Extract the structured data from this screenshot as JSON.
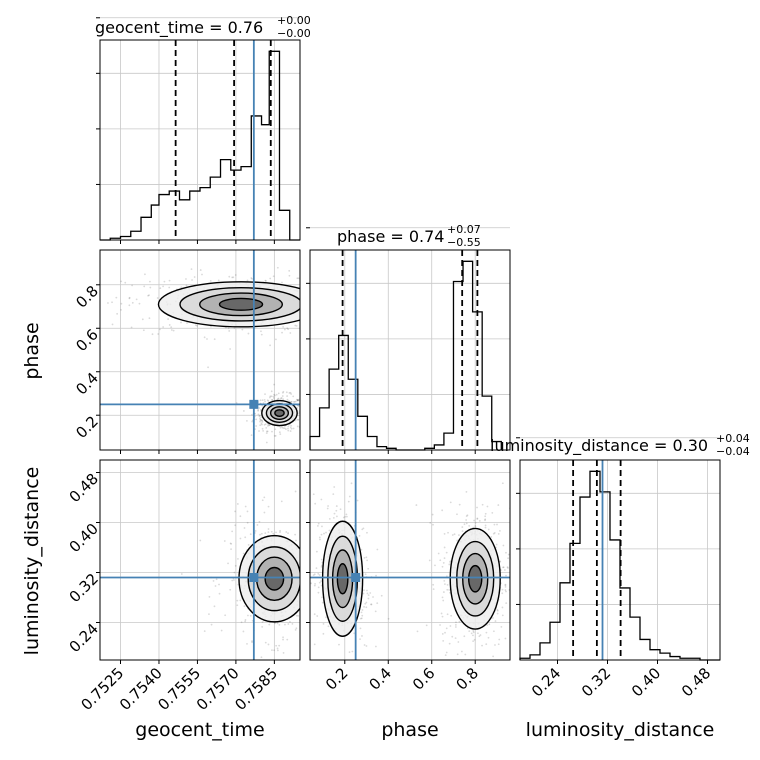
{
  "chart_data": {
    "type": "corner",
    "parameters": [
      "geocent_time",
      "phase",
      "luminosity_distance"
    ],
    "truths": [
      0.7577,
      0.25,
      0.312
    ],
    "truth_color": "#4682b4",
    "titles": [
      {
        "param": "geocent_time",
        "label": "geocent_time = 0.76",
        "plus": "+0.00",
        "minus": "−0.00"
      },
      {
        "param": "phase",
        "label": "phase = 0.74",
        "plus": "+0.07",
        "minus": "−0.55"
      },
      {
        "param": "luminosity_distance",
        "label": "luminosity_distance = 0.30",
        "plus": "+0.04",
        "minus": "−0.04"
      }
    ],
    "ranges": {
      "geocent_time": [
        0.7517,
        0.7595
      ],
      "phase": [
        0.04,
        0.96
      ],
      "luminosity_distance": [
        0.18,
        0.5
      ]
    },
    "ticks": {
      "geocent_time": [
        "0.7525",
        "0.7540",
        "0.7555",
        "0.7570",
        "0.7585"
      ],
      "phase": [
        "0.2",
        "0.4",
        "0.6",
        "0.8"
      ],
      "luminosity_distance": [
        "0.24",
        "0.32",
        "0.40",
        "0.48"
      ]
    },
    "quantiles": {
      "geocent_time": [
        0.75465,
        0.75693,
        0.75836
      ],
      "phase": [
        0.19,
        0.74,
        0.81
      ],
      "luminosity_distance": [
        0.265,
        0.303,
        0.341
      ]
    },
    "histograms": {
      "geocent_time": {
        "bins": [
          0.7517,
          0.7521,
          0.7525,
          0.7529,
          0.7533,
          0.7537,
          0.754,
          0.7544,
          0.7548,
          0.7552,
          0.7556,
          0.756,
          0.7564,
          0.7568,
          0.7572,
          0.7576,
          0.758,
          0.7583,
          0.7587,
          0.7591,
          0.7595
        ],
        "counts": [
          0,
          1,
          2,
          5,
          13,
          20,
          26,
          28,
          23,
          28,
          30,
          36,
          46,
          40,
          42,
          71,
          66,
          108,
          17,
          0
        ]
      },
      "phase": {
        "bins": [
          0.04,
          0.084,
          0.128,
          0.172,
          0.216,
          0.26,
          0.304,
          0.348,
          0.392,
          0.436,
          0.48,
          0.524,
          0.568,
          0.612,
          0.656,
          0.7,
          0.744,
          0.788,
          0.832,
          0.876,
          0.92
        ],
        "counts": [
          8,
          25,
          48,
          68,
          42,
          20,
          8,
          2,
          1,
          0,
          0,
          0,
          1,
          3,
          10,
          100,
          112,
          82,
          32,
          5
        ]
      },
      "luminosity_distance": {
        "bins": [
          0.18,
          0.196,
          0.212,
          0.228,
          0.244,
          0.26,
          0.276,
          0.292,
          0.308,
          0.324,
          0.34,
          0.356,
          0.372,
          0.388,
          0.404,
          0.42,
          0.436,
          0.452,
          0.468,
          0.484,
          0.5
        ],
        "counts": [
          1,
          3,
          10,
          22,
          45,
          68,
          95,
          110,
          98,
          70,
          42,
          25,
          12,
          6,
          4,
          2,
          1,
          1,
          0,
          0
        ]
      }
    },
    "modes": [
      {
        "pair": [
          "geocent_time",
          "phase"
        ],
        "center": [
          0.7587,
          0.21
        ],
        "spread": [
          0.0003,
          0.025
        ],
        "density": 1.0
      },
      {
        "pair": [
          "geocent_time",
          "phase"
        ],
        "center": [
          0.7572,
          0.71
        ],
        "spread": [
          0.0014,
          0.045
        ],
        "density": 0.9
      },
      {
        "pair": [
          "geocent_time",
          "luminosity_distance"
        ],
        "center": [
          0.7585,
          0.31
        ],
        "spread": [
          0.0006,
          0.03
        ],
        "density": 1.0
      },
      {
        "pair": [
          "phase",
          "luminosity_distance"
        ],
        "center": [
          0.8,
          0.31
        ],
        "spread": [
          0.05,
          0.035
        ],
        "density": 1.0
      },
      {
        "pair": [
          "phase",
          "luminosity_distance"
        ],
        "center": [
          0.19,
          0.31
        ],
        "spread": [
          0.04,
          0.04
        ],
        "density": 0.7
      }
    ],
    "xlabel_geocent": "geocent_time",
    "xlabel_phase": "phase",
    "xlabel_distance": "luminosity_distance",
    "ylabel_phase": "phase",
    "ylabel_distance": "luminosity_distance",
    "grid": true
  }
}
